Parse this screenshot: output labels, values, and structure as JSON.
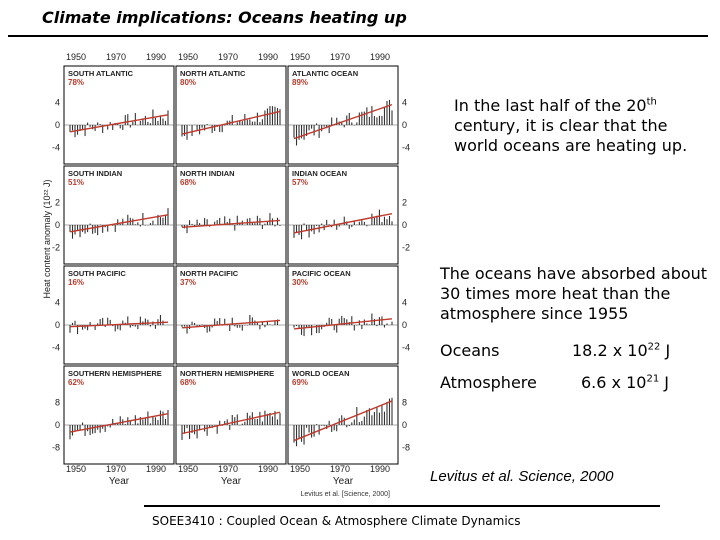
{
  "slide": {
    "title": "Climate implications: Oceans heating up",
    "paragraph_1": {
      "before_sup": "In the last half of the 20",
      "sup": "th",
      "after_sup": " century, it is clear that the world oceans are heating up."
    },
    "paragraph_2": "The oceans have absorbed about 30 times more heat than the atmosphere since 1955",
    "heat_table": [
      {
        "label": "Oceans",
        "value_base": "18.2 x 10",
        "value_exp": "22",
        "unit": " J"
      },
      {
        "label": "Atmosphere",
        "value_base": "6.6 x 10",
        "value_exp": "21",
        "unit": " J"
      }
    ],
    "citation": "Levitus et al. Science, 2000",
    "footer": "SOEE3410 : Coupled Ocean & Atmosphere Climate Dynamics"
  },
  "chart_data": {
    "type": "line",
    "ylabel": "Heat content anomaly (10²² J)",
    "xlabel": "Year",
    "x_ticks": [
      "1950",
      "1970",
      "1990"
    ],
    "source_caption": "Levitus et al. [Science, 2000]",
    "rows": [
      {
        "y_ticks": [
          "4",
          "0",
          "-4"
        ],
        "ylim": [
          -6,
          6
        ]
      },
      {
        "y_ticks": [
          "2",
          "0",
          "-2"
        ],
        "ylim": [
          -3,
          3
        ]
      },
      {
        "y_ticks": [
          "4",
          "0",
          "-4"
        ],
        "ylim": [
          -6,
          6
        ]
      },
      {
        "y_ticks": [
          "8",
          "0",
          "-8"
        ],
        "ylim": [
          -12,
          12
        ]
      }
    ],
    "panels": [
      {
        "name": "SOUTH ATLANTIC",
        "percent": "78%",
        "trend": [
          -1.2,
          1.8
        ]
      },
      {
        "name": "NORTH ATLANTIC",
        "percent": "80%",
        "trend": [
          -1.6,
          2.4
        ]
      },
      {
        "name": "ATLANTIC OCEAN",
        "percent": "89%",
        "trend": [
          -2.4,
          3.6
        ]
      },
      {
        "name": "SOUTH INDIAN",
        "percent": "51%",
        "trend": [
          -0.6,
          0.9
        ]
      },
      {
        "name": "NORTH INDIAN",
        "percent": "68%",
        "trend": [
          -0.2,
          0.4
        ]
      },
      {
        "name": "INDIAN OCEAN",
        "percent": "57%",
        "trend": [
          -0.7,
          1.0
        ]
      },
      {
        "name": "SOUTH PACIFIC",
        "percent": "16%",
        "trend": [
          -0.3,
          0.5
        ]
      },
      {
        "name": "NORTH PACIFIC",
        "percent": "37%",
        "trend": [
          -0.5,
          0.8
        ]
      },
      {
        "name": "PACIFIC OCEAN",
        "percent": "30%",
        "trend": [
          -0.7,
          1.1
        ]
      },
      {
        "name": "SOUTHERN HEMISPHERE",
        "percent": "62%",
        "trend": [
          -2.5,
          4.0
        ]
      },
      {
        "name": "NORTHERN HEMISPHERE",
        "percent": "68%",
        "trend": [
          -3.0,
          4.5
        ]
      },
      {
        "name": "WORLD OCEAN",
        "percent": "69%",
        "trend": [
          -5.5,
          8.5
        ]
      }
    ]
  }
}
